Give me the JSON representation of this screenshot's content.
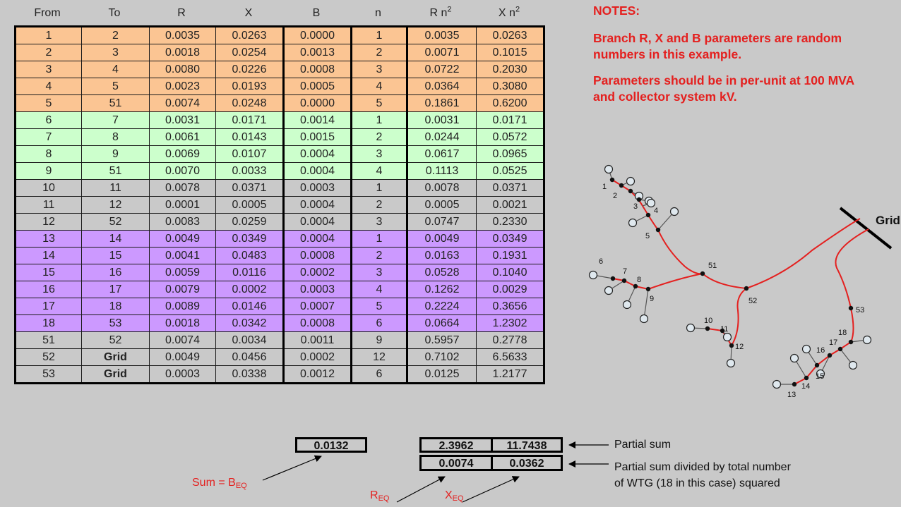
{
  "table": {
    "headers": [
      {
        "text": "From"
      },
      {
        "text": "To"
      },
      {
        "text": "R"
      },
      {
        "text": "X"
      },
      {
        "text": "B"
      },
      {
        "text": "n"
      },
      {
        "text": "R n",
        "sup": "2"
      },
      {
        "text": "X n",
        "sup": "2"
      }
    ],
    "rows": [
      {
        "group": "orange",
        "cells": [
          "1",
          "2",
          "0.0035",
          "0.0263",
          "0.0000",
          "1",
          "0.0035",
          "0.0263"
        ]
      },
      {
        "group": "orange",
        "cells": [
          "2",
          "3",
          "0.0018",
          "0.0254",
          "0.0013",
          "2",
          "0.0071",
          "0.1015"
        ]
      },
      {
        "group": "orange",
        "cells": [
          "3",
          "4",
          "0.0080",
          "0.0226",
          "0.0008",
          "3",
          "0.0722",
          "0.2030"
        ]
      },
      {
        "group": "orange",
        "cells": [
          "4",
          "5",
          "0.0023",
          "0.0193",
          "0.0005",
          "4",
          "0.0364",
          "0.3080"
        ]
      },
      {
        "group": "orange",
        "cells": [
          "5",
          "51",
          "0.0074",
          "0.0248",
          "0.0000",
          "5",
          "0.1861",
          "0.6200"
        ]
      },
      {
        "group": "green",
        "cells": [
          "6",
          "7",
          "0.0031",
          "0.0171",
          "0.0014",
          "1",
          "0.0031",
          "0.0171"
        ]
      },
      {
        "group": "green",
        "cells": [
          "7",
          "8",
          "0.0061",
          "0.0143",
          "0.0015",
          "2",
          "0.0244",
          "0.0572"
        ]
      },
      {
        "group": "green",
        "cells": [
          "8",
          "9",
          "0.0069",
          "0.0107",
          "0.0004",
          "3",
          "0.0617",
          "0.0965"
        ]
      },
      {
        "group": "green",
        "cells": [
          "9",
          "51",
          "0.0070",
          "0.0033",
          "0.0004",
          "4",
          "0.1113",
          "0.0525"
        ]
      },
      {
        "group": "gray",
        "cells": [
          "10",
          "11",
          "0.0078",
          "0.0371",
          "0.0003",
          "1",
          "0.0078",
          "0.0371"
        ]
      },
      {
        "group": "gray",
        "cells": [
          "11",
          "12",
          "0.0001",
          "0.0005",
          "0.0004",
          "2",
          "0.0005",
          "0.0021"
        ]
      },
      {
        "group": "gray",
        "cells": [
          "12",
          "52",
          "0.0083",
          "0.0259",
          "0.0004",
          "3",
          "0.0747",
          "0.2330"
        ]
      },
      {
        "group": "purple",
        "cells": [
          "13",
          "14",
          "0.0049",
          "0.0349",
          "0.0004",
          "1",
          "0.0049",
          "0.0349"
        ]
      },
      {
        "group": "purple",
        "cells": [
          "14",
          "15",
          "0.0041",
          "0.0483",
          "0.0008",
          "2",
          "0.0163",
          "0.1931"
        ]
      },
      {
        "group": "purple",
        "cells": [
          "15",
          "16",
          "0.0059",
          "0.0116",
          "0.0002",
          "3",
          "0.0528",
          "0.1040"
        ]
      },
      {
        "group": "purple",
        "cells": [
          "16",
          "17",
          "0.0079",
          "0.0002",
          "0.0003",
          "4",
          "0.1262",
          "0.0029"
        ]
      },
      {
        "group": "purple",
        "cells": [
          "17",
          "18",
          "0.0089",
          "0.0146",
          "0.0007",
          "5",
          "0.2224",
          "0.3656"
        ]
      },
      {
        "group": "purple",
        "cells": [
          "18",
          "53",
          "0.0018",
          "0.0342",
          "0.0008",
          "6",
          "0.0664",
          "1.2302"
        ]
      },
      {
        "group": "gray",
        "cells": [
          "51",
          "52",
          "0.0074",
          "0.0034",
          "0.0011",
          "9",
          "0.5957",
          "0.2778"
        ]
      },
      {
        "group": "gray",
        "boldTo": true,
        "cells": [
          "52",
          "Grid",
          "0.0049",
          "0.0456",
          "0.0002",
          "12",
          "0.7102",
          "6.5633"
        ]
      },
      {
        "group": "gray",
        "boldTo": true,
        "cells": [
          "53",
          "Grid",
          "0.0003",
          "0.0338",
          "0.0012",
          "6",
          "0.0125",
          "1.2177"
        ]
      }
    ]
  },
  "colors": {
    "orange": "#fbc593",
    "green": "#ccffcc",
    "gray": "#c9c9c9",
    "purple": "#cc99ff",
    "note_red": "#e4201f",
    "feeder_red": "#e4201f"
  },
  "sums": {
    "b_sum": "0.0132",
    "rn2_sum": "2.3962",
    "xn2_sum": "11.7438",
    "r_eq": "0.0074",
    "x_eq": "0.0362"
  },
  "annotations": {
    "partial_sum": "Partial sum",
    "partial_sum_divided_line1": "Partial sum divided by total number",
    "partial_sum_divided_line2": "of WTG (18 in this case) squared",
    "sum_label": "Sum = B",
    "sum_sub": "EQ",
    "r_label": "R",
    "r_sub": "EQ",
    "x_label": "X",
    "x_sub": "EQ"
  },
  "notes": {
    "title": "NOTES:",
    "line1": "Branch R, X and B parameters are random numbers in this example.",
    "line2": "Parameters should be in per-unit at 100 MVA and collector system kV."
  },
  "diagram": {
    "grid_label": "Grid",
    "node_labels": [
      "1",
      "2",
      "3",
      "4",
      "5",
      "6",
      "7",
      "8",
      "9",
      "10",
      "11",
      "12",
      "13",
      "14",
      "15",
      "16",
      "17",
      "18",
      "51",
      "52",
      "53"
    ]
  }
}
